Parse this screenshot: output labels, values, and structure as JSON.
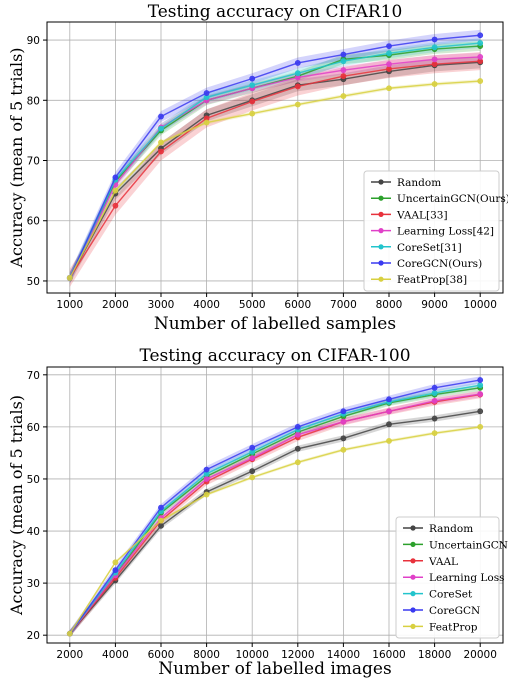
{
  "chart_data": [
    {
      "type": "line",
      "title": "Testing accuracy on CIFAR10",
      "xlabel": "Number of labelled samples",
      "ylabel": "Accuracy (mean of 5 trials)",
      "x": [
        1000,
        2000,
        3000,
        4000,
        5000,
        6000,
        7000,
        8000,
        9000,
        10000
      ],
      "xlim": [
        500,
        10500
      ],
      "ylim": [
        48,
        93
      ],
      "yticks": [
        50,
        60,
        70,
        80,
        90
      ],
      "legend_position": "lower-right",
      "grid": true,
      "series": [
        {
          "name": "Random",
          "color": "#444444",
          "values": [
            50.5,
            64.5,
            72.0,
            77.5,
            80.0,
            82.5,
            83.5,
            84.8,
            85.8,
            86.3
          ],
          "band": 1.0
        },
        {
          "name": "UncertainGCN(Ours)",
          "color": "#2ca02c",
          "values": [
            50.5,
            66.5,
            75.0,
            80.0,
            82.0,
            84.0,
            86.8,
            87.5,
            88.5,
            89.0
          ],
          "band": 0.8
        },
        {
          "name": "VAAL[33]",
          "color": "#e8323c",
          "values": [
            50.5,
            62.5,
            71.5,
            77.0,
            79.8,
            82.3,
            84.0,
            85.2,
            86.0,
            86.5
          ],
          "band": 1.5
        },
        {
          "name": "Learning Loss[42]",
          "color": "#e040c8",
          "values": [
            50.5,
            66.0,
            75.5,
            80.0,
            82.0,
            83.8,
            85.0,
            86.0,
            86.8,
            87.2
          ],
          "band": 0.7
        },
        {
          "name": "CoreSet[31]",
          "color": "#22c4cc",
          "values": [
            50.5,
            66.8,
            75.3,
            80.5,
            82.5,
            84.5,
            86.5,
            87.8,
            88.8,
            89.5
          ],
          "band": 0.8
        },
        {
          "name": "CoreGCN(Ours)",
          "color": "#3a3af0",
          "values": [
            50.5,
            67.2,
            77.3,
            81.2,
            83.6,
            86.2,
            87.6,
            89.0,
            90.1,
            90.8
          ],
          "band": 0.9
        },
        {
          "name": "FeatProp[38]",
          "color": "#d8d040",
          "values": [
            50.5,
            65.0,
            73.0,
            76.3,
            77.8,
            79.3,
            80.7,
            82.0,
            82.7,
            83.2
          ],
          "band": 0.3
        }
      ]
    },
    {
      "type": "line",
      "title": "Testing accuracy on CIFAR-100",
      "xlabel": "Number of labelled images",
      "ylabel": "Accuracy (mean of 5 trials)",
      "x": [
        2000,
        4000,
        6000,
        8000,
        10000,
        12000,
        14000,
        16000,
        18000,
        20000
      ],
      "xlim": [
        1000,
        21000
      ],
      "ylim": [
        18.5,
        71.5
      ],
      "yticks": [
        20,
        30,
        40,
        50,
        60,
        70
      ],
      "legend_position": "lower-right",
      "grid": true,
      "series": [
        {
          "name": "Random",
          "color": "#444444",
          "values": [
            20.3,
            30.5,
            41.0,
            47.5,
            51.5,
            55.8,
            57.8,
            60.5,
            61.6,
            63.0
          ],
          "band": 0.6
        },
        {
          "name": "UncertainGCN",
          "color": "#2ca02c",
          "values": [
            20.3,
            31.5,
            43.5,
            50.5,
            54.8,
            59.0,
            62.0,
            64.6,
            66.2,
            67.5
          ],
          "band": 0.6
        },
        {
          "name": "VAAL",
          "color": "#e8323c",
          "values": [
            20.3,
            31.0,
            42.0,
            49.5,
            53.8,
            58.0,
            61.0,
            63.0,
            64.8,
            66.2
          ],
          "band": 0.7
        },
        {
          "name": "Learning Loss",
          "color": "#e040c8",
          "values": [
            20.3,
            31.5,
            42.5,
            50.0,
            54.0,
            58.5,
            61.0,
            63.0,
            65.0,
            66.3
          ],
          "band": 0.6
        },
        {
          "name": "CoreSet",
          "color": "#22c4cc",
          "values": [
            20.3,
            32.0,
            43.8,
            51.0,
            55.2,
            59.5,
            62.5,
            64.8,
            66.5,
            68.0
          ],
          "band": 0.6
        },
        {
          "name": "CoreGCN",
          "color": "#3a3af0",
          "values": [
            20.3,
            32.5,
            44.5,
            51.8,
            56.0,
            60.0,
            63.0,
            65.3,
            67.5,
            69.0
          ],
          "band": 0.7
        },
        {
          "name": "FeatProp",
          "color": "#d8d040",
          "values": [
            20.3,
            34.0,
            42.0,
            47.0,
            50.3,
            53.2,
            55.6,
            57.3,
            58.8,
            60.0
          ],
          "band": 0.3
        }
      ]
    }
  ]
}
